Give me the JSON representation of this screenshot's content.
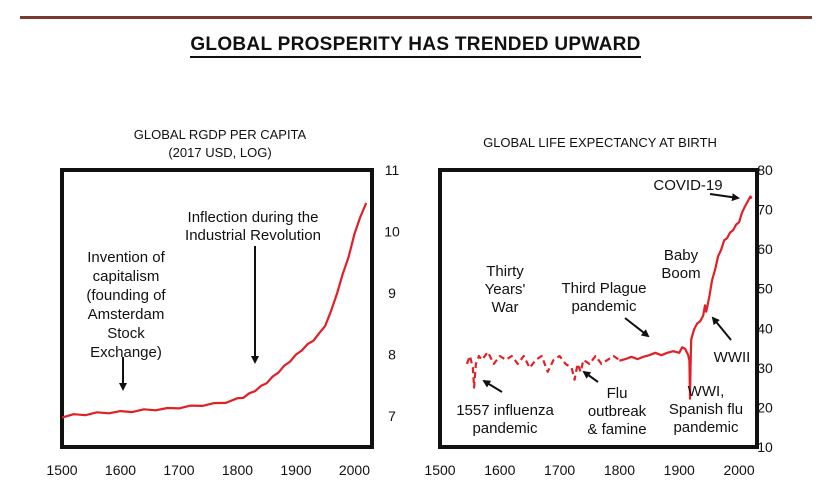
{
  "page_title": "GLOBAL PROSPERITY HAS TRENDED UPWARD",
  "colors": {
    "line": "#e21f26",
    "frame": "#111111",
    "rule": "#7a3a32"
  },
  "chart_data": [
    {
      "type": "line",
      "title_line1": "GLOBAL RGDP PER CAPITA",
      "title_line2": "(2017 USD, LOG)",
      "xlim": [
        1500,
        2030
      ],
      "ylim": [
        6.5,
        11
      ],
      "x_ticks": [
        1500,
        1600,
        1700,
        1800,
        1900,
        2000
      ],
      "x_tick_labels": [
        "1500",
        "1600",
        "1700",
        "1800",
        "1900",
        "2000"
      ],
      "y_ticks": [
        7,
        8,
        9,
        10,
        11
      ],
      "y_tick_labels": [
        "7",
        "8",
        "9",
        "10",
        "11"
      ],
      "series": [
        {
          "name": "Global RGDP per capita",
          "x": [
            1500,
            1520,
            1540,
            1560,
            1580,
            1600,
            1620,
            1640,
            1660,
            1680,
            1700,
            1720,
            1740,
            1760,
            1780,
            1800,
            1810,
            1820,
            1830,
            1840,
            1850,
            1860,
            1870,
            1880,
            1890,
            1900,
            1910,
            1920,
            1930,
            1940,
            1950,
            1960,
            1970,
            1980,
            1990,
            2000,
            2010,
            2020
          ],
          "y": [
            6.99,
            7.02,
            7.03,
            7.05,
            7.06,
            7.07,
            7.08,
            7.1,
            7.11,
            7.12,
            7.14,
            7.16,
            7.18,
            7.2,
            7.23,
            7.28,
            7.31,
            7.36,
            7.42,
            7.48,
            7.55,
            7.63,
            7.72,
            7.81,
            7.9,
            7.99,
            8.08,
            8.16,
            8.24,
            8.34,
            8.48,
            8.7,
            9.0,
            9.3,
            9.6,
            9.95,
            10.25,
            10.45
          ]
        }
      ],
      "annotations": [
        {
          "id": "capitalism",
          "lines": [
            "Invention of",
            "capitalism",
            "(founding of",
            "Amsterdam",
            "Stock",
            "Exchange)"
          ],
          "arrow_x": 1600
        },
        {
          "id": "industrial",
          "lines": [
            "Inflection during the",
            "Industrial Revolution"
          ],
          "arrow_x": 1820
        }
      ]
    },
    {
      "type": "line",
      "title_line1": "GLOBAL LIFE EXPECTANCY AT BIRTH",
      "xlim": [
        1500,
        2030
      ],
      "ylim": [
        10,
        80
      ],
      "x_ticks": [
        1500,
        1600,
        1700,
        1800,
        1900,
        2000
      ],
      "x_tick_labels": [
        "1500",
        "1600",
        "1700",
        "1800",
        "1900",
        "2000"
      ],
      "y_ticks": [
        10,
        20,
        30,
        40,
        50,
        60,
        70,
        80
      ],
      "y_tick_labels": [
        "10",
        "20",
        "30",
        "40",
        "50",
        "60",
        "70",
        "80"
      ],
      "series": [
        {
          "name": "Global life expectancy (pre-1800 sparse estimates)",
          "style": "dashed",
          "x": [
            1545,
            1550,
            1555,
            1557,
            1560,
            1565,
            1570,
            1580,
            1590,
            1600,
            1610,
            1620,
            1630,
            1640,
            1650,
            1660,
            1670,
            1680,
            1690,
            1700,
            1710,
            1720,
            1725,
            1730,
            1735,
            1740,
            1750,
            1760,
            1770,
            1780,
            1790,
            1800
          ],
          "y": [
            31,
            33,
            30,
            25,
            31,
            33,
            32,
            34,
            31,
            33,
            32,
            33,
            31,
            33,
            30,
            32,
            33,
            29,
            32,
            33,
            31,
            30,
            27,
            31,
            29,
            32,
            31,
            33,
            31,
            32,
            33,
            32
          ]
        },
        {
          "name": "Global life expectancy",
          "style": "solid",
          "x": [
            1800,
            1810,
            1820,
            1830,
            1840,
            1850,
            1860,
            1870,
            1880,
            1890,
            1900,
            1905,
            1910,
            1915,
            1917,
            1918,
            1919,
            1920,
            1925,
            1930,
            1935,
            1940,
            1943,
            1945,
            1950,
            1955,
            1960,
            1965,
            1970,
            1975,
            1980,
            1985,
            1990,
            1995,
            2000,
            2005,
            2010,
            2015,
            2019,
            2020,
            2021
          ],
          "y": [
            32,
            32,
            33,
            32,
            33,
            33,
            34,
            33,
            34,
            34,
            34,
            35,
            35,
            33,
            32,
            22,
            31,
            37,
            40,
            41,
            42,
            43,
            46,
            44,
            48,
            52,
            55,
            58,
            60,
            62,
            63,
            64,
            65,
            66,
            67,
            69,
            71,
            72,
            73.5,
            72.8,
            73.5
          ]
        }
      ],
      "annotations": [
        {
          "id": "covid",
          "lines": [
            "COVID-19"
          ]
        },
        {
          "id": "babyboom",
          "lines": [
            "Baby",
            "Boom"
          ]
        },
        {
          "id": "thirtyyears",
          "lines": [
            "Thirty",
            "Years'",
            "War"
          ]
        },
        {
          "id": "plague",
          "lines": [
            "Third Plague",
            "pandemic"
          ]
        },
        {
          "id": "wwii",
          "lines": [
            "WWII"
          ]
        },
        {
          "id": "wwi",
          "lines": [
            "WWI,",
            "Spanish flu",
            "pandemic"
          ]
        },
        {
          "id": "influenza",
          "lines": [
            "1557 influenza",
            "pandemic"
          ]
        },
        {
          "id": "flu",
          "lines": [
            "Flu",
            "outbreak",
            "& famine"
          ]
        }
      ]
    }
  ]
}
